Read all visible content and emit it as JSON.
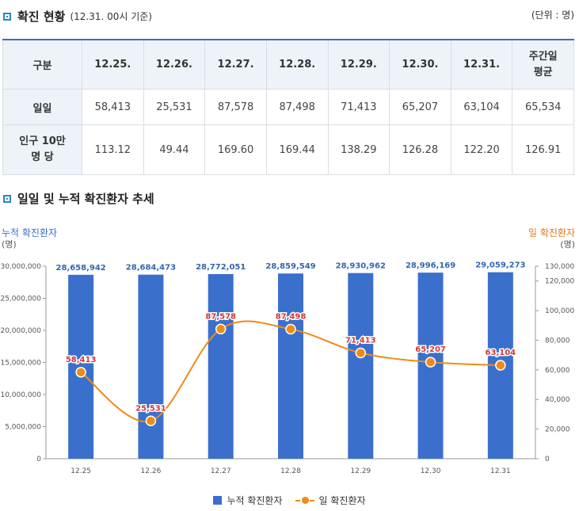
{
  "header": {
    "title": "확진 현황",
    "subtitle": "(12.31. 00시 기준)",
    "unit": "(단위 : 명)"
  },
  "table": {
    "corner": "구분",
    "columns": [
      "12.25.",
      "12.26.",
      "12.27.",
      "12.28.",
      "12.29.",
      "12.30.",
      "12.31."
    ],
    "avg_header": "주간일 평균",
    "rows": [
      {
        "label": "일일",
        "values": [
          "58,413",
          "25,531",
          "87,578",
          "87,498",
          "71,413",
          "65,207",
          "63,104"
        ],
        "avg": "65,534"
      },
      {
        "label": "인구 10만 명 당",
        "values": [
          "113.12",
          "49.44",
          "169.60",
          "169.44",
          "138.29",
          "126.28",
          "122.20"
        ],
        "avg": "126.91"
      }
    ]
  },
  "chart_section": {
    "title": "일일 및 누적 확진환자 추세"
  },
  "chart_data": {
    "type": "bar+line",
    "title": "일일 및 누적 확진환자 추세",
    "categories": [
      "12.25",
      "12.26",
      "12.27",
      "12.28",
      "12.29",
      "12.30",
      "12.31"
    ],
    "series": [
      {
        "name": "누적 확진환자",
        "type": "bar",
        "axis": "left",
        "color": "#3a70cc",
        "values": [
          28658942,
          28684473,
          28772051,
          28859549,
          28930962,
          28996169,
          29059273
        ],
        "labels": [
          "28,658,942",
          "28,684,473",
          "28,772,051",
          "28,859,549",
          "28,930,962",
          "28,996,169",
          "29,059,273"
        ]
      },
      {
        "name": "일 확진환자",
        "type": "line",
        "axis": "right",
        "color": "#f08a16",
        "values": [
          58413,
          25531,
          87578,
          87498,
          71413,
          65207,
          63104
        ],
        "labels": [
          "58,413",
          "25,531",
          "87,578",
          "87,498",
          "71,413",
          "65,207",
          "63,104"
        ]
      }
    ],
    "left_axis": {
      "title": "누적 확진환자",
      "unit": "(명)",
      "ylim": [
        0,
        30000000
      ],
      "ticks": [
        0,
        5000000,
        10000000,
        15000000,
        20000000,
        25000000,
        30000000
      ],
      "tick_labels": [
        "0",
        "5,000,000",
        "10,000,000",
        "15,000,000",
        "20,000,000",
        "25,000,000",
        "30,000,000"
      ]
    },
    "right_axis": {
      "title": "일 확진환자",
      "unit": "(명)",
      "ylim": [
        0,
        130000
      ],
      "ticks": [
        0,
        20000,
        40000,
        60000,
        80000,
        100000,
        120000,
        130000
      ],
      "tick_labels": [
        "0",
        "20,000",
        "40,000",
        "60,000",
        "80,000",
        "100,000",
        "120,000",
        "130,000"
      ]
    },
    "legend": [
      "누적 확진환자",
      "일 확진환자"
    ]
  }
}
